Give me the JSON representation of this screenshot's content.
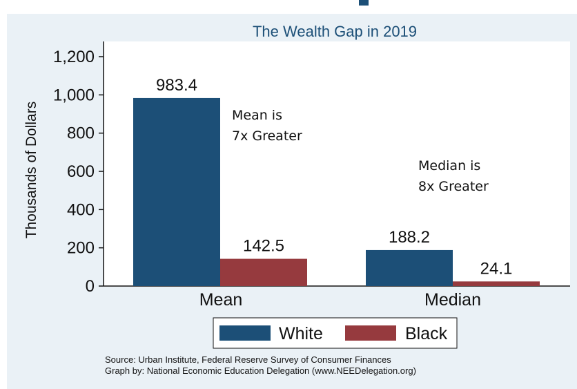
{
  "chart_data": {
    "type": "bar",
    "title": "The Wealth Gap in 2019",
    "ylabel": "Thousands of Dollars",
    "xlabel": "",
    "categories": [
      "Mean",
      "Median"
    ],
    "series": [
      {
        "name": "White",
        "values": [
          983.4,
          188.2
        ],
        "color": "#1c4f77",
        "labels": [
          "983.4",
          "188.2"
        ]
      },
      {
        "name": "Black",
        "values": [
          142.5,
          24.1
        ],
        "color": "#963a3e",
        "labels": [
          "142.5",
          "24.1"
        ]
      }
    ],
    "ylim": [
      0,
      1200
    ],
    "yticks": [
      0,
      200,
      400,
      600,
      800,
      1000,
      1200
    ],
    "ytick_labels": [
      "0",
      "200",
      "400",
      "600",
      "800",
      "1,000",
      "1,200"
    ],
    "grid": false,
    "legend_position": "bottom",
    "annotations": [
      {
        "lines": [
          "Mean is",
          "7x Greater"
        ]
      },
      {
        "lines": [
          "Median is",
          "8x Greater"
        ]
      }
    ],
    "source_lines": [
      "Source: Urban Institute, Federal Reserve Survey of Consumer Finances",
      "Graph by: National Economic Education Delegation (www.NEEDelegation.org)"
    ]
  }
}
